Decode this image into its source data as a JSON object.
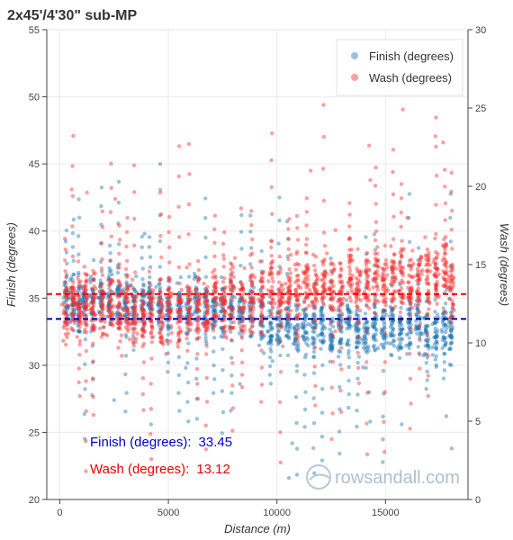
{
  "chart_data": {
    "type": "scatter",
    "title": "2x45'/4'30\" sub-MP",
    "xlabel": "Distance (m)",
    "ylabel_left": "Finish (degrees)",
    "ylabel_right": "Wash (degrees)",
    "xlim": [
      -600,
      18800
    ],
    "ylim_left": [
      20,
      55
    ],
    "ylim_right": [
      0,
      30
    ],
    "x_ticks": [
      0,
      5000,
      10000,
      15000
    ],
    "y_left_ticks": [
      20,
      25,
      30,
      35,
      40,
      45,
      50,
      55
    ],
    "y_right_ticks": [
      0,
      5,
      10,
      15,
      20,
      25,
      30
    ],
    "grid": true,
    "legend_position": "top-right",
    "series": [
      {
        "name": "Finish (degrees)",
        "axis": "left",
        "color": "#1f77b4",
        "mean": 33.45,
        "seed": 7,
        "strokes": [
          [
            300,
            34.8
          ],
          [
            620,
            34.6
          ],
          [
            880,
            34.4
          ],
          [
            1150,
            34.9
          ],
          [
            1500,
            35.0
          ],
          [
            1900,
            35.2
          ],
          [
            2300,
            35.0
          ],
          [
            2700,
            34.8
          ],
          [
            3050,
            34.6
          ],
          [
            3400,
            34.9
          ],
          [
            3800,
            34.5
          ],
          [
            4150,
            34.7
          ],
          [
            4600,
            34.3
          ],
          [
            5000,
            34.1
          ],
          [
            5500,
            34.4
          ],
          [
            5900,
            34.2
          ],
          [
            6300,
            34.6
          ],
          [
            6700,
            34.0
          ],
          [
            7100,
            34.2
          ],
          [
            7500,
            33.9
          ],
          [
            7900,
            34.3
          ],
          [
            8350,
            33.8
          ],
          [
            8800,
            34.0
          ],
          [
            9300,
            33.6
          ],
          [
            9700,
            33.0
          ],
          [
            10100,
            32.8
          ],
          [
            10500,
            33.1
          ],
          [
            10900,
            32.6
          ],
          [
            11300,
            33.0
          ],
          [
            11700,
            32.4
          ],
          [
            12100,
            32.9
          ],
          [
            12500,
            32.2
          ],
          [
            12900,
            32.8
          ],
          [
            13300,
            33.0
          ],
          [
            13700,
            32.5
          ],
          [
            14100,
            32.1
          ],
          [
            14500,
            32.8
          ],
          [
            14900,
            32.4
          ],
          [
            15300,
            33.0
          ],
          [
            15700,
            32.3
          ],
          [
            16100,
            32.7
          ],
          [
            16500,
            33.1
          ],
          [
            16900,
            32.6
          ],
          [
            17300,
            32.0
          ],
          [
            17700,
            33.2
          ],
          [
            18000,
            32.8
          ]
        ],
        "outliers": [
          [
            4200,
            25.6
          ],
          [
            3900,
            39.8
          ],
          [
            10700,
            24.2
          ],
          [
            18050,
            23.8
          ],
          [
            10550,
            21.6
          ],
          [
            2500,
            27.4
          ],
          [
            5800,
            29.8
          ],
          [
            8300,
            28.6
          ],
          [
            14300,
            25.8
          ],
          [
            15750,
            25.6
          ],
          [
            17800,
            26.2
          ],
          [
            14250,
            28.0
          ]
        ]
      },
      {
        "name": "Wash (degrees)",
        "axis": "right",
        "color": "#ff2a2a",
        "mean": 13.12,
        "seed": 42,
        "strokes": [
          [
            250,
            12.0
          ],
          [
            600,
            12.4
          ],
          [
            900,
            12.2
          ],
          [
            1200,
            12.6
          ],
          [
            1550,
            12.3
          ],
          [
            1950,
            12.1
          ],
          [
            2350,
            12.5
          ],
          [
            2750,
            11.8
          ],
          [
            3100,
            12.2
          ],
          [
            3450,
            11.6
          ],
          [
            3850,
            12.0
          ],
          [
            4200,
            11.8
          ],
          [
            4650,
            11.5
          ],
          [
            5050,
            12.0
          ],
          [
            5500,
            11.7
          ],
          [
            5950,
            11.9
          ],
          [
            6350,
            12.4
          ],
          [
            6750,
            12.0
          ],
          [
            7150,
            12.6
          ],
          [
            7550,
            12.2
          ],
          [
            7950,
            12.8
          ],
          [
            8400,
            12.3
          ],
          [
            8850,
            12.7
          ],
          [
            9300,
            12.9
          ],
          [
            9750,
            13.6
          ],
          [
            10150,
            13.2
          ],
          [
            10550,
            13.5
          ],
          [
            10950,
            13.1
          ],
          [
            11350,
            13.7
          ],
          [
            11750,
            13.4
          ],
          [
            12150,
            13.8
          ],
          [
            12550,
            13.3
          ],
          [
            12950,
            13.6
          ],
          [
            13350,
            14.0
          ],
          [
            13750,
            13.5
          ],
          [
            14150,
            13.9
          ],
          [
            14550,
            14.2
          ],
          [
            14950,
            13.8
          ],
          [
            15350,
            14.0
          ],
          [
            15750,
            14.4
          ],
          [
            16150,
            13.7
          ],
          [
            16550,
            14.1
          ],
          [
            16950,
            14.3
          ],
          [
            17350,
            13.9
          ],
          [
            17750,
            14.5
          ],
          [
            18050,
            13.6
          ]
        ],
        "outliers": [
          [
            550,
            19.8
          ],
          [
            1250,
            19.6
          ],
          [
            2550,
            19.2
          ],
          [
            11550,
            21.0
          ],
          [
            14250,
            22.6
          ],
          [
            15800,
            24.9
          ],
          [
            17300,
            23.2
          ],
          [
            17650,
            22.8
          ],
          [
            16000,
            18.0
          ],
          [
            14300,
            20.4
          ],
          [
            8350,
            18.6
          ],
          [
            12700,
            17.2
          ]
        ]
      }
    ],
    "annotations": [
      {
        "label": "Finish (degrees):",
        "value": "33.45",
        "color": "#0000cc"
      },
      {
        "label": "Wash (degrees):",
        "value": "13.12",
        "color": "#ee0000"
      }
    ]
  },
  "watermark": {
    "text": "rowsandall.com"
  }
}
